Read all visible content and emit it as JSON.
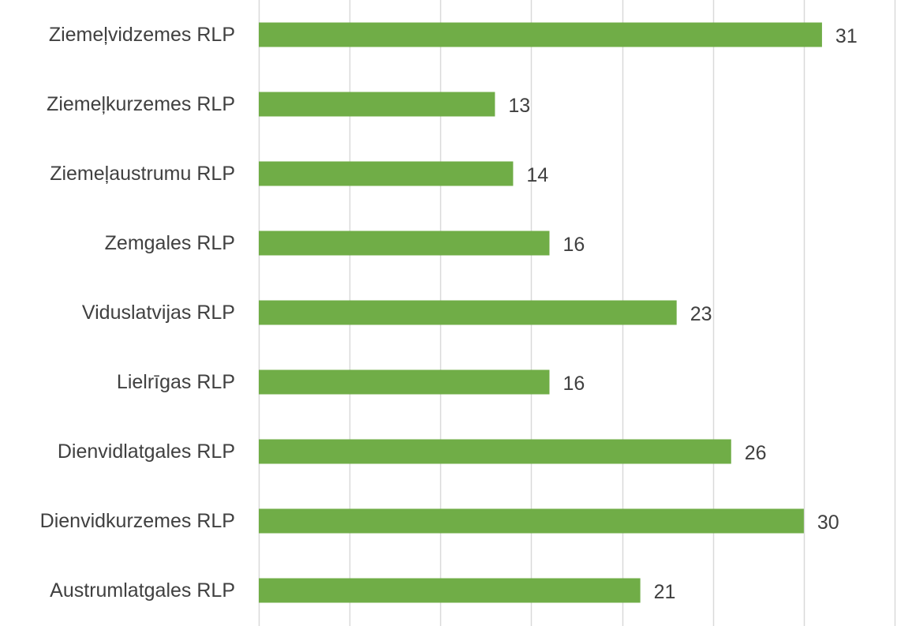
{
  "chart_data": {
    "type": "bar",
    "orientation": "horizontal",
    "categories": [
      "Ziemeļvidzemes RLP",
      "Ziemeļkurzemes RLP",
      "Ziemeļaustrumu RLP",
      "Zemgales RLP",
      "Viduslatvijas RLP",
      "Lielrīgas RLP",
      "Dienvidlatgales RLP",
      "Dienvidkurzemes RLP",
      "Austrumlatgales RLP"
    ],
    "values": [
      31,
      13,
      14,
      16,
      23,
      16,
      26,
      30,
      21
    ],
    "data_labels": [
      "31",
      "13",
      "14",
      "16",
      "23",
      "16",
      "26",
      "30",
      "21"
    ],
    "xlim": [
      0,
      35
    ],
    "x_gridline_step": 5,
    "grid": true,
    "legend": "none",
    "title": "",
    "xlabel": "",
    "ylabel": "",
    "colors": {
      "bar": "#70AD47",
      "grid": "#D9D9D9",
      "text": "#404040"
    }
  }
}
